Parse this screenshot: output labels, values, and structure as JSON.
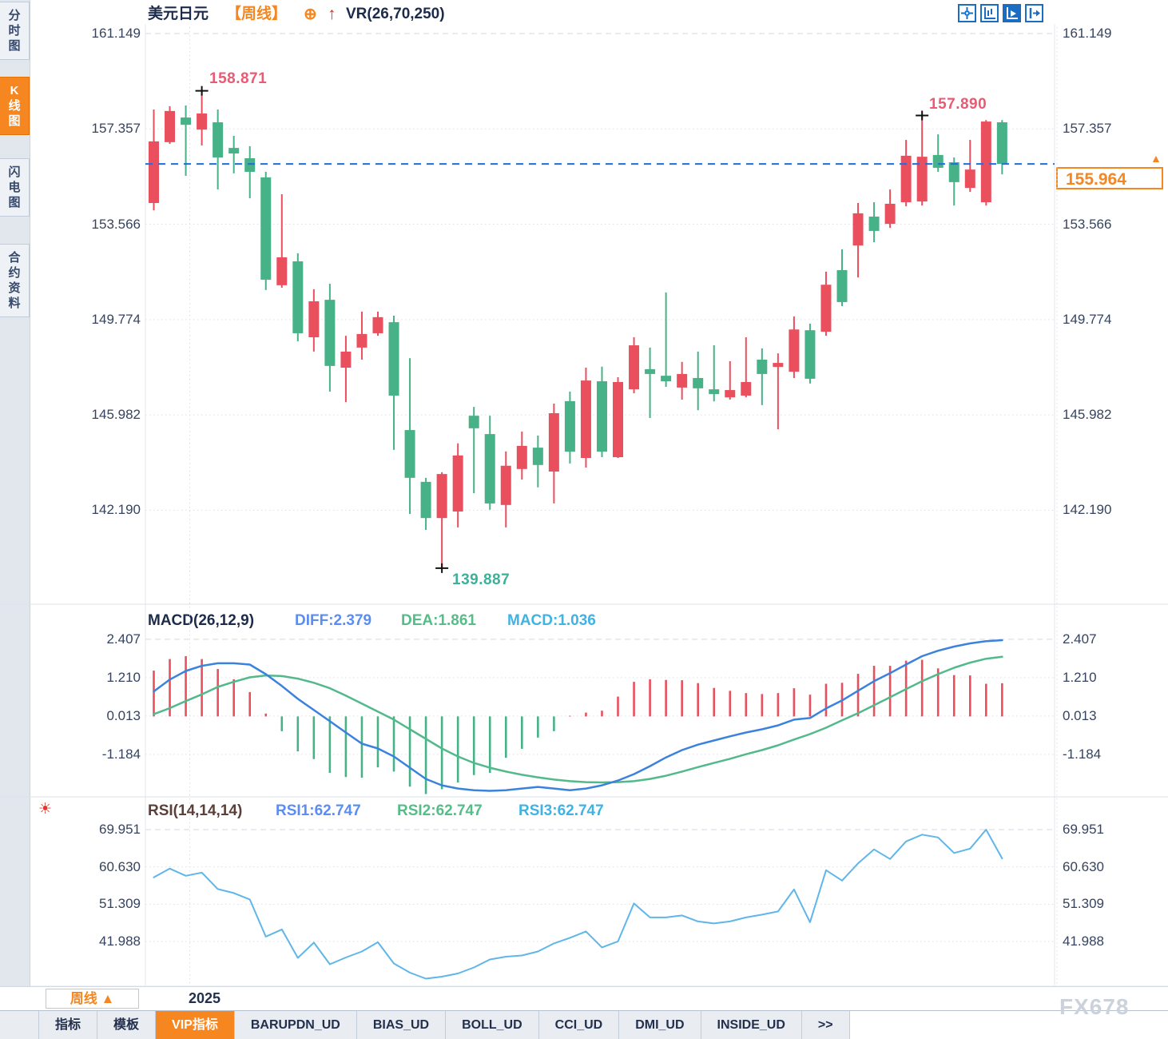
{
  "header": {
    "symbol": "美元日元",
    "period": "【周线】",
    "attach_icon": "⊕",
    "arrow_icon": "↑",
    "indicator": "VR(26,70,250)"
  },
  "toolbar": {
    "icons": [
      "crosshair",
      "axis-scale",
      "auto-scale-active",
      "panel-detach"
    ]
  },
  "sidebar": {
    "items": [
      {
        "label": "分时图",
        "active": false
      },
      {
        "label": "K线图",
        "active": true
      },
      {
        "label": "闪电图",
        "active": false
      },
      {
        "label": "合约资料",
        "active": false
      }
    ]
  },
  "axes": {
    "price": [
      "161.149",
      "157.357",
      "153.566",
      "149.774",
      "145.982",
      "142.190"
    ],
    "macd": [
      "2.407",
      "1.210",
      "0.013",
      "-1.184"
    ],
    "rsi": [
      "69.951",
      "60.630",
      "51.309",
      "41.988"
    ]
  },
  "macd_header": {
    "title": "MACD(26,12,9)",
    "diff_label": "DIFF:2.379",
    "dea_label": "DEA:1.861",
    "macd_label": "MACD:1.036"
  },
  "rsi_header": {
    "title": "RSI(14,14,14)",
    "rsi1_label": "RSI1:62.747",
    "rsi2_label": "RSI2:62.747",
    "rsi3_label": "RSI3:62.747"
  },
  "annotations": {
    "swing_high": "158.871",
    "recent_high": "157.890",
    "swing_low": "139.887",
    "last_price": "155.964",
    "tag_triangle": "▲"
  },
  "bottom_bar": {
    "period_selector": "周线 ▲",
    "year_label": "2025",
    "watermark": "FX678"
  },
  "tab_bar": {
    "tabs": [
      {
        "label": "指标",
        "active": false
      },
      {
        "label": "模板",
        "active": false
      },
      {
        "label": "VIP指标",
        "active": true
      },
      {
        "label": "BARUPDN_UD",
        "active": false
      },
      {
        "label": "BIAS_UD",
        "active": false
      },
      {
        "label": "BOLL_UD",
        "active": false
      },
      {
        "label": "CCI_UD",
        "active": false
      },
      {
        "label": "DMI_UD",
        "active": false
      },
      {
        "label": "INSIDE_UD",
        "active": false
      },
      {
        "label": ">>",
        "active": false
      }
    ]
  },
  "colors": {
    "up": "#ea4f5e",
    "down": "#47b287",
    "accent_orange": "#f6861f",
    "last_price_line": "#1d6ee0",
    "diff_line": "#3b82dd",
    "dea_line": "#53b98b",
    "rsi_line": "#5fb6e8",
    "annotation_red": "#e85b72",
    "annotation_teal": "#3cb09a",
    "grid": "#dcdfe5",
    "icon_blue": "#1a6dc0"
  },
  "chart_data": [
    {
      "type": "candlestick",
      "title": "美元日元 周线",
      "legend_position": "top-left",
      "grid": true,
      "y_ticks": [
        161.149,
        157.357,
        153.566,
        149.774,
        145.982,
        142.19
      ],
      "ylim": [
        138.2,
        161.5
      ],
      "last_price": 155.964,
      "swing_high": 158.871,
      "swing_high_index": 3,
      "swing_low": 139.887,
      "swing_low_index": 18,
      "recent_high": 157.89,
      "recent_high_index": 48,
      "year_marker": {
        "label": "2025",
        "index_boundary": 2
      },
      "up_means": "close>=open is red (CN convention)",
      "candles_ohlc": [
        [
          154.41,
          158.13,
          154.12,
          156.86
        ],
        [
          156.83,
          158.26,
          156.76,
          158.07
        ],
        [
          157.81,
          158.29,
          155.49,
          157.52
        ],
        [
          157.33,
          158.871,
          156.7,
          157.97
        ],
        [
          157.62,
          158.13,
          154.95,
          156.22
        ],
        [
          156.6,
          157.08,
          155.59,
          156.38
        ],
        [
          156.19,
          156.67,
          154.6,
          155.65
        ],
        [
          155.43,
          155.65,
          150.95,
          151.36
        ],
        [
          151.14,
          154.76,
          151.04,
          152.25
        ],
        [
          152.09,
          152.41,
          148.91,
          149.23
        ],
        [
          149.07,
          150.98,
          148.5,
          150.5
        ],
        [
          150.56,
          151.2,
          146.91,
          147.93
        ],
        [
          147.86,
          149.13,
          146.49,
          148.5
        ],
        [
          148.66,
          150.09,
          148.18,
          149.2
        ],
        [
          149.23,
          150.09,
          149.13,
          149.87
        ],
        [
          149.67,
          149.93,
          144.59,
          146.75
        ],
        [
          145.38,
          148.24,
          142.04,
          143.48
        ],
        [
          143.32,
          143.48,
          141.41,
          141.88
        ],
        [
          141.88,
          143.7,
          139.887,
          143.63
        ],
        [
          142.14,
          144.85,
          141.51,
          144.37
        ],
        [
          145.95,
          146.3,
          142.87,
          145.45
        ],
        [
          145.22,
          145.95,
          142.21,
          142.46
        ],
        [
          142.4,
          144.53,
          141.51,
          143.96
        ],
        [
          143.83,
          145.32,
          143.41,
          144.75
        ],
        [
          144.68,
          145.16,
          143.1,
          143.99
        ],
        [
          143.73,
          146.43,
          142.46,
          146.05
        ],
        [
          146.53,
          146.91,
          144.05,
          144.52
        ],
        [
          144.27,
          147.86,
          143.89,
          147.35
        ],
        [
          147.32,
          147.9,
          144.3,
          144.52
        ],
        [
          144.3,
          147.48,
          144.27,
          147.29
        ],
        [
          147.0,
          149.07,
          146.84,
          148.75
        ],
        [
          147.8,
          148.66,
          145.86,
          147.61
        ],
        [
          147.54,
          150.85,
          147.1,
          147.32
        ],
        [
          147.07,
          148.09,
          146.59,
          147.61
        ],
        [
          147.45,
          148.5,
          146.17,
          147.04
        ],
        [
          147.0,
          148.75,
          146.52,
          146.81
        ],
        [
          146.68,
          148.12,
          146.59,
          146.97
        ],
        [
          146.75,
          149.07,
          146.68,
          147.29
        ],
        [
          148.18,
          148.63,
          146.37,
          147.61
        ],
        [
          147.89,
          148.43,
          145.41,
          148.05
        ],
        [
          147.7,
          149.9,
          147.45,
          149.38
        ],
        [
          149.35,
          149.61,
          147.23,
          147.42
        ],
        [
          149.29,
          151.68,
          149.13,
          151.16
        ],
        [
          151.74,
          152.57,
          150.31,
          150.47
        ],
        [
          152.72,
          154.41,
          151.45,
          154.0
        ],
        [
          153.87,
          154.44,
          152.85,
          153.3
        ],
        [
          153.58,
          154.95,
          153.42,
          154.38
        ],
        [
          154.44,
          156.92,
          154.28,
          156.29
        ],
        [
          154.47,
          157.89,
          154.31,
          156.25
        ],
        [
          156.32,
          157.14,
          155.65,
          155.81
        ],
        [
          156.03,
          156.22,
          154.31,
          155.24
        ],
        [
          155.01,
          156.92,
          154.85,
          155.74
        ],
        [
          154.44,
          157.71,
          154.31,
          157.65
        ],
        [
          157.62,
          157.71,
          155.55,
          155.964
        ]
      ]
    },
    {
      "type": "macd",
      "title": "MACD(26,12,9)",
      "y_ticks": [
        2.407,
        1.21,
        0.013,
        -1.184
      ],
      "diff_last": 2.379,
      "dea_last": 1.861,
      "macd_last": 1.036,
      "hist": [
        1.43,
        1.79,
        1.88,
        1.79,
        1.48,
        1.16,
        0.76,
        0.09,
        -0.46,
        -1.09,
        -1.33,
        -1.76,
        -1.89,
        -1.91,
        -1.59,
        -1.72,
        -2.19,
        -2.42,
        -2.27,
        -2.06,
        -1.83,
        -1.76,
        -1.29,
        -1.01,
        -0.66,
        -0.46,
        0.02,
        0.12,
        0.18,
        0.62,
        1.08,
        1.16,
        1.14,
        1.13,
        1.04,
        0.89,
        0.8,
        0.73,
        0.7,
        0.73,
        0.88,
        0.68,
        1.02,
        1.05,
        1.33,
        1.58,
        1.58,
        1.74,
        1.77,
        1.5,
        1.29,
        1.28,
        1.02,
        1.036
      ],
      "diff": [
        0.78,
        1.15,
        1.42,
        1.58,
        1.66,
        1.66,
        1.62,
        1.32,
        0.95,
        0.55,
        0.2,
        -0.15,
        -0.5,
        -0.85,
        -1.0,
        -1.25,
        -1.6,
        -1.95,
        -2.15,
        -2.25,
        -2.3,
        -2.32,
        -2.3,
        -2.25,
        -2.2,
        -2.25,
        -2.3,
        -2.25,
        -2.15,
        -2.0,
        -1.8,
        -1.55,
        -1.28,
        -1.05,
        -0.88,
        -0.75,
        -0.62,
        -0.5,
        -0.4,
        -0.28,
        -0.1,
        -0.05,
        0.25,
        0.5,
        0.8,
        1.1,
        1.35,
        1.62,
        1.88,
        2.05,
        2.18,
        2.28,
        2.35,
        2.379
      ],
      "dea": [
        0.07,
        0.26,
        0.48,
        0.69,
        0.92,
        1.08,
        1.22,
        1.28,
        1.26,
        1.18,
        1.05,
        0.88,
        0.65,
        0.4,
        0.15,
        -0.1,
        -0.4,
        -0.7,
        -1.0,
        -1.25,
        -1.45,
        -1.6,
        -1.72,
        -1.82,
        -1.9,
        -1.97,
        -2.02,
        -2.05,
        -2.06,
        -2.05,
        -2.02,
        -1.95,
        -1.85,
        -1.72,
        -1.58,
        -1.45,
        -1.32,
        -1.18,
        -1.05,
        -0.9,
        -0.72,
        -0.55,
        -0.35,
        -0.12,
        0.1,
        0.35,
        0.6,
        0.85,
        1.1,
        1.32,
        1.52,
        1.68,
        1.8,
        1.861
      ]
    },
    {
      "type": "rsi",
      "title": "RSI(14,14,14)",
      "y_ticks": [
        69.951,
        60.63,
        51.309,
        41.988
      ],
      "value_last": 62.747,
      "rsi": [
        58.0,
        60.2,
        58.4,
        59.2,
        55.1,
        54.1,
        52.5,
        43.2,
        45.0,
        37.9,
        41.7,
        36.3,
        38.0,
        39.5,
        41.8,
        36.5,
        34.2,
        32.7,
        33.2,
        34.0,
        35.5,
        37.5,
        38.2,
        38.5,
        39.5,
        41.5,
        42.9,
        44.5,
        40.5,
        42.0,
        51.5,
        48.0,
        48.0,
        48.5,
        47.0,
        46.5,
        47.0,
        48.0,
        48.7,
        49.5,
        55.0,
        46.8,
        59.8,
        57.2,
        61.5,
        65.0,
        62.6,
        67.0,
        68.7,
        68.0,
        64.1,
        65.2,
        69.951,
        62.747
      ]
    }
  ]
}
